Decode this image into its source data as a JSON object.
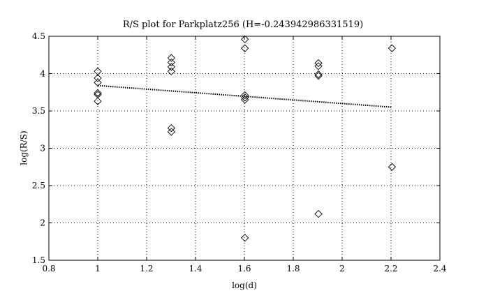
{
  "chart_data": {
    "type": "scatter",
    "title": "R/S plot for Parkplatz256 (H=-0.243942986331519)",
    "xlabel": "log(d)",
    "ylabel": "log(R/S)",
    "xlim": [
      0.8,
      2.4
    ],
    "ylim": [
      1.5,
      4.5
    ],
    "xticks": [
      "0.8",
      "1",
      "1.2",
      "1.4",
      "1.6",
      "1.8",
      "2",
      "2.2",
      "2.4"
    ],
    "yticks": [
      "1.5",
      "2",
      "2.5",
      "3",
      "3.5",
      "4",
      "4.5"
    ],
    "grid": true,
    "marker": "diamond",
    "points": [
      {
        "x": 1.0,
        "y": 4.03
      },
      {
        "x": 1.0,
        "y": 3.94
      },
      {
        "x": 1.0,
        "y": 3.88
      },
      {
        "x": 1.0,
        "y": 3.74
      },
      {
        "x": 1.0,
        "y": 3.72
      },
      {
        "x": 1.0,
        "y": 3.63
      },
      {
        "x": 1.301,
        "y": 4.21
      },
      {
        "x": 1.301,
        "y": 4.15
      },
      {
        "x": 1.301,
        "y": 4.09
      },
      {
        "x": 1.301,
        "y": 4.03
      },
      {
        "x": 1.301,
        "y": 3.27
      },
      {
        "x": 1.301,
        "y": 3.22
      },
      {
        "x": 1.602,
        "y": 4.46
      },
      {
        "x": 1.602,
        "y": 4.34
      },
      {
        "x": 1.602,
        "y": 3.71
      },
      {
        "x": 1.602,
        "y": 3.68
      },
      {
        "x": 1.602,
        "y": 3.65
      },
      {
        "x": 1.602,
        "y": 1.8
      },
      {
        "x": 1.903,
        "y": 4.14
      },
      {
        "x": 1.903,
        "y": 4.1
      },
      {
        "x": 1.903,
        "y": 3.99
      },
      {
        "x": 1.903,
        "y": 3.97
      },
      {
        "x": 1.903,
        "y": 2.12
      },
      {
        "x": 2.204,
        "y": 4.34
      },
      {
        "x": 2.204,
        "y": 2.75
      }
    ],
    "fit_line": {
      "style": "dotted",
      "x": [
        1.0,
        2.204
      ],
      "y": [
        3.84,
        3.55
      ]
    }
  }
}
